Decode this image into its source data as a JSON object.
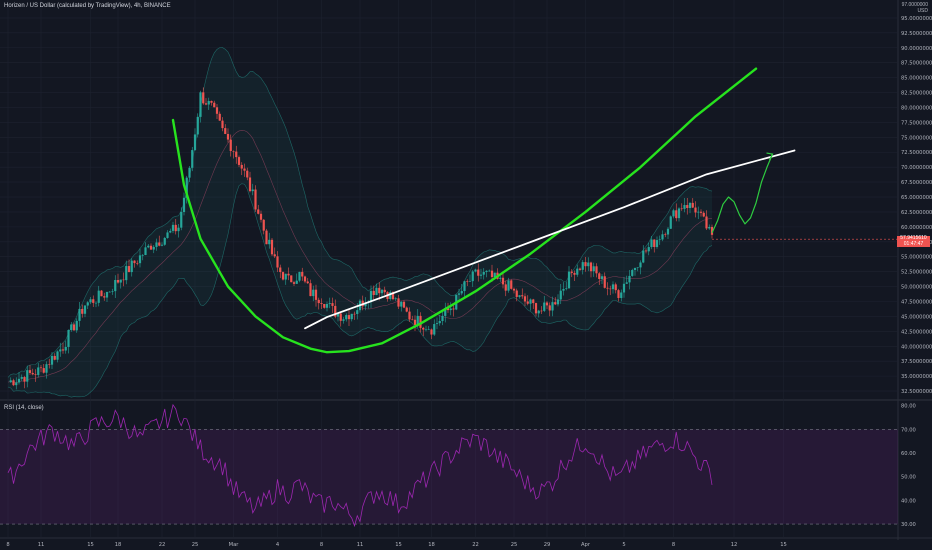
{
  "header": {
    "title": "Horizen / US Dollar (calculated by TradingView), 4h, BINANCE",
    "currency_top": "97.0000000",
    "currency": "USD"
  },
  "rsi_title": "RSI (14, close)",
  "price_label": {
    "value": "57.9415610",
    "countdown": "01:47:47"
  },
  "colors": {
    "background": "#131722",
    "grid": "#1e2230",
    "up": "#26a69a",
    "down": "#ef5350",
    "bb": "#26a69a",
    "ma": "#b04a6a",
    "cup": "#27e31e",
    "trend": "#ffffff",
    "rsi": "#9c27b0"
  },
  "chart_data": [
    {
      "type": "line",
      "title": "Horizen / US Dollar (calculated by TradingView), 4h, BINANCE",
      "ylim": [
        31,
        98
      ],
      "y_ticks": [
        "95.0000000",
        "92.5000000",
        "90.0000000",
        "87.5000000",
        "85.0000000",
        "82.5000000",
        "80.0000000",
        "77.5000000",
        "75.0000000",
        "72.5000000",
        "70.0000000",
        "67.5000000",
        "65.0000000",
        "62.5000000",
        "60.0000000",
        "57.5000000",
        "55.0000000",
        "52.5000000",
        "50.0000000",
        "47.5000000",
        "45.0000000",
        "42.5000000",
        "40.0000000",
        "37.5000000",
        "35.0000000",
        "32.5000000"
      ],
      "x_ticks": [
        "8",
        "11",
        "15",
        "18",
        "22",
        "25",
        "Mar",
        "4",
        "8",
        "11",
        "15",
        "18",
        "22",
        "25",
        "29",
        "Apr",
        "5",
        "8",
        "12",
        "15"
      ],
      "price_path": [
        [
          0,
          34
        ],
        [
          6,
          36
        ],
        [
          10,
          40
        ],
        [
          14,
          47
        ],
        [
          18,
          49
        ],
        [
          22,
          53
        ],
        [
          26,
          57
        ],
        [
          28,
          58
        ],
        [
          31,
          60
        ],
        [
          33,
          70
        ],
        [
          35,
          82
        ],
        [
          37,
          80
        ],
        [
          39,
          76
        ],
        [
          41,
          73
        ],
        [
          43,
          69
        ],
        [
          45,
          64
        ],
        [
          47,
          58
        ],
        [
          49,
          53
        ],
        [
          51,
          51
        ],
        [
          53,
          52
        ],
        [
          55,
          49
        ],
        [
          57,
          48
        ],
        [
          59,
          46
        ],
        [
          61,
          45
        ],
        [
          63,
          46
        ],
        [
          65,
          48
        ],
        [
          67,
          50
        ],
        [
          69,
          49
        ],
        [
          71,
          47
        ],
        [
          73,
          45
        ],
        [
          75,
          44
        ],
        [
          77,
          43
        ],
        [
          79,
          45
        ],
        [
          81,
          47
        ],
        [
          83,
          50
        ],
        [
          85,
          52
        ],
        [
          87,
          52
        ],
        [
          89,
          51
        ],
        [
          91,
          50
        ],
        [
          93,
          48
        ],
        [
          95,
          47
        ],
        [
          97,
          46
        ],
        [
          99,
          47
        ],
        [
          101,
          50
        ],
        [
          103,
          53
        ],
        [
          105,
          54
        ],
        [
          107,
          52
        ],
        [
          109,
          50
        ],
        [
          111,
          49
        ],
        [
          113,
          52
        ],
        [
          115,
          55
        ],
        [
          117,
          57
        ],
        [
          119,
          59
        ],
        [
          121,
          62
        ],
        [
          123,
          64
        ],
        [
          125,
          63
        ],
        [
          127,
          60
        ],
        [
          128,
          58
        ]
      ],
      "series": [
        {
          "values": [
            [
              30,
              77.9
            ],
            [
              32,
              67
            ],
            [
              35,
              58
            ],
            [
              40,
              50
            ],
            [
              45,
              45
            ],
            [
              50,
              41.5
            ],
            [
              55,
              39.6
            ],
            [
              58,
              39
            ],
            [
              62,
              39.2
            ],
            [
              68,
              40.5
            ],
            [
              75,
              43.8
            ],
            [
              85,
              49.2
            ],
            [
              95,
              55.5
            ],
            [
              105,
              62.5
            ],
            [
              115,
              70
            ],
            [
              125,
              78.5
            ],
            [
              136,
              86.5
            ]
          ]
        },
        {
          "values": [
            [
              54,
              43
            ],
            [
              58,
              44.9
            ],
            [
              68,
              48.2
            ],
            [
              82,
              53
            ],
            [
              96,
              57.8
            ],
            [
              112,
              63.3
            ],
            [
              127,
              68.8
            ],
            [
              143,
              72.8
            ]
          ]
        },
        {
          "values": [
            [
              128,
              59
            ],
            [
              129,
              61
            ],
            [
              130,
              63.8
            ],
            [
              131,
              65
            ],
            [
              132,
              64.2
            ],
            [
              133,
              62
            ],
            [
              134,
              60.5
            ],
            [
              135,
              61.5
            ],
            [
              136,
              64
            ],
            [
              137,
              67.5
            ],
            [
              138,
              70
            ],
            [
              139,
              72.2
            ]
          ]
        }
      ]
    },
    {
      "type": "line",
      "title": "RSI (14, close)",
      "ylim": [
        27.5,
        82
      ],
      "y_ticks": [
        "80.00",
        "70.00",
        "60.00",
        "50.00",
        "40.00",
        "30.00"
      ],
      "band": [
        30,
        70
      ],
      "rsi_path": [
        [
          0,
          48
        ],
        [
          4,
          62
        ],
        [
          8,
          70
        ],
        [
          12,
          63
        ],
        [
          16,
          72
        ],
        [
          20,
          75
        ],
        [
          24,
          66
        ],
        [
          27,
          72
        ],
        [
          29,
          75
        ],
        [
          31,
          78
        ],
        [
          33,
          70
        ],
        [
          35,
          62
        ],
        [
          37,
          58
        ],
        [
          39,
          55
        ],
        [
          41,
          45
        ],
        [
          43,
          40
        ],
        [
          45,
          36
        ],
        [
          47,
          40
        ],
        [
          49,
          45
        ],
        [
          51,
          43
        ],
        [
          53,
          47
        ],
        [
          55,
          41
        ],
        [
          57,
          38
        ],
        [
          59,
          40
        ],
        [
          61,
          36
        ],
        [
          63,
          33
        ],
        [
          65,
          38
        ],
        [
          67,
          44
        ],
        [
          69,
          42
        ],
        [
          71,
          38
        ],
        [
          73,
          42
        ],
        [
          75,
          47
        ],
        [
          77,
          51
        ],
        [
          79,
          56
        ],
        [
          81,
          60
        ],
        [
          83,
          64
        ],
        [
          85,
          66
        ],
        [
          87,
          63
        ],
        [
          89,
          58
        ],
        [
          91,
          55
        ],
        [
          93,
          50
        ],
        [
          95,
          46
        ],
        [
          97,
          44
        ],
        [
          99,
          48
        ],
        [
          101,
          56
        ],
        [
          103,
          61
        ],
        [
          105,
          65
        ],
        [
          107,
          60
        ],
        [
          109,
          52
        ],
        [
          111,
          49
        ],
        [
          113,
          54
        ],
        [
          115,
          58
        ],
        [
          117,
          62
        ],
        [
          119,
          64
        ],
        [
          121,
          66
        ],
        [
          123,
          64
        ],
        [
          125,
          58
        ],
        [
          127,
          53
        ],
        [
          128,
          51
        ]
      ]
    }
  ]
}
